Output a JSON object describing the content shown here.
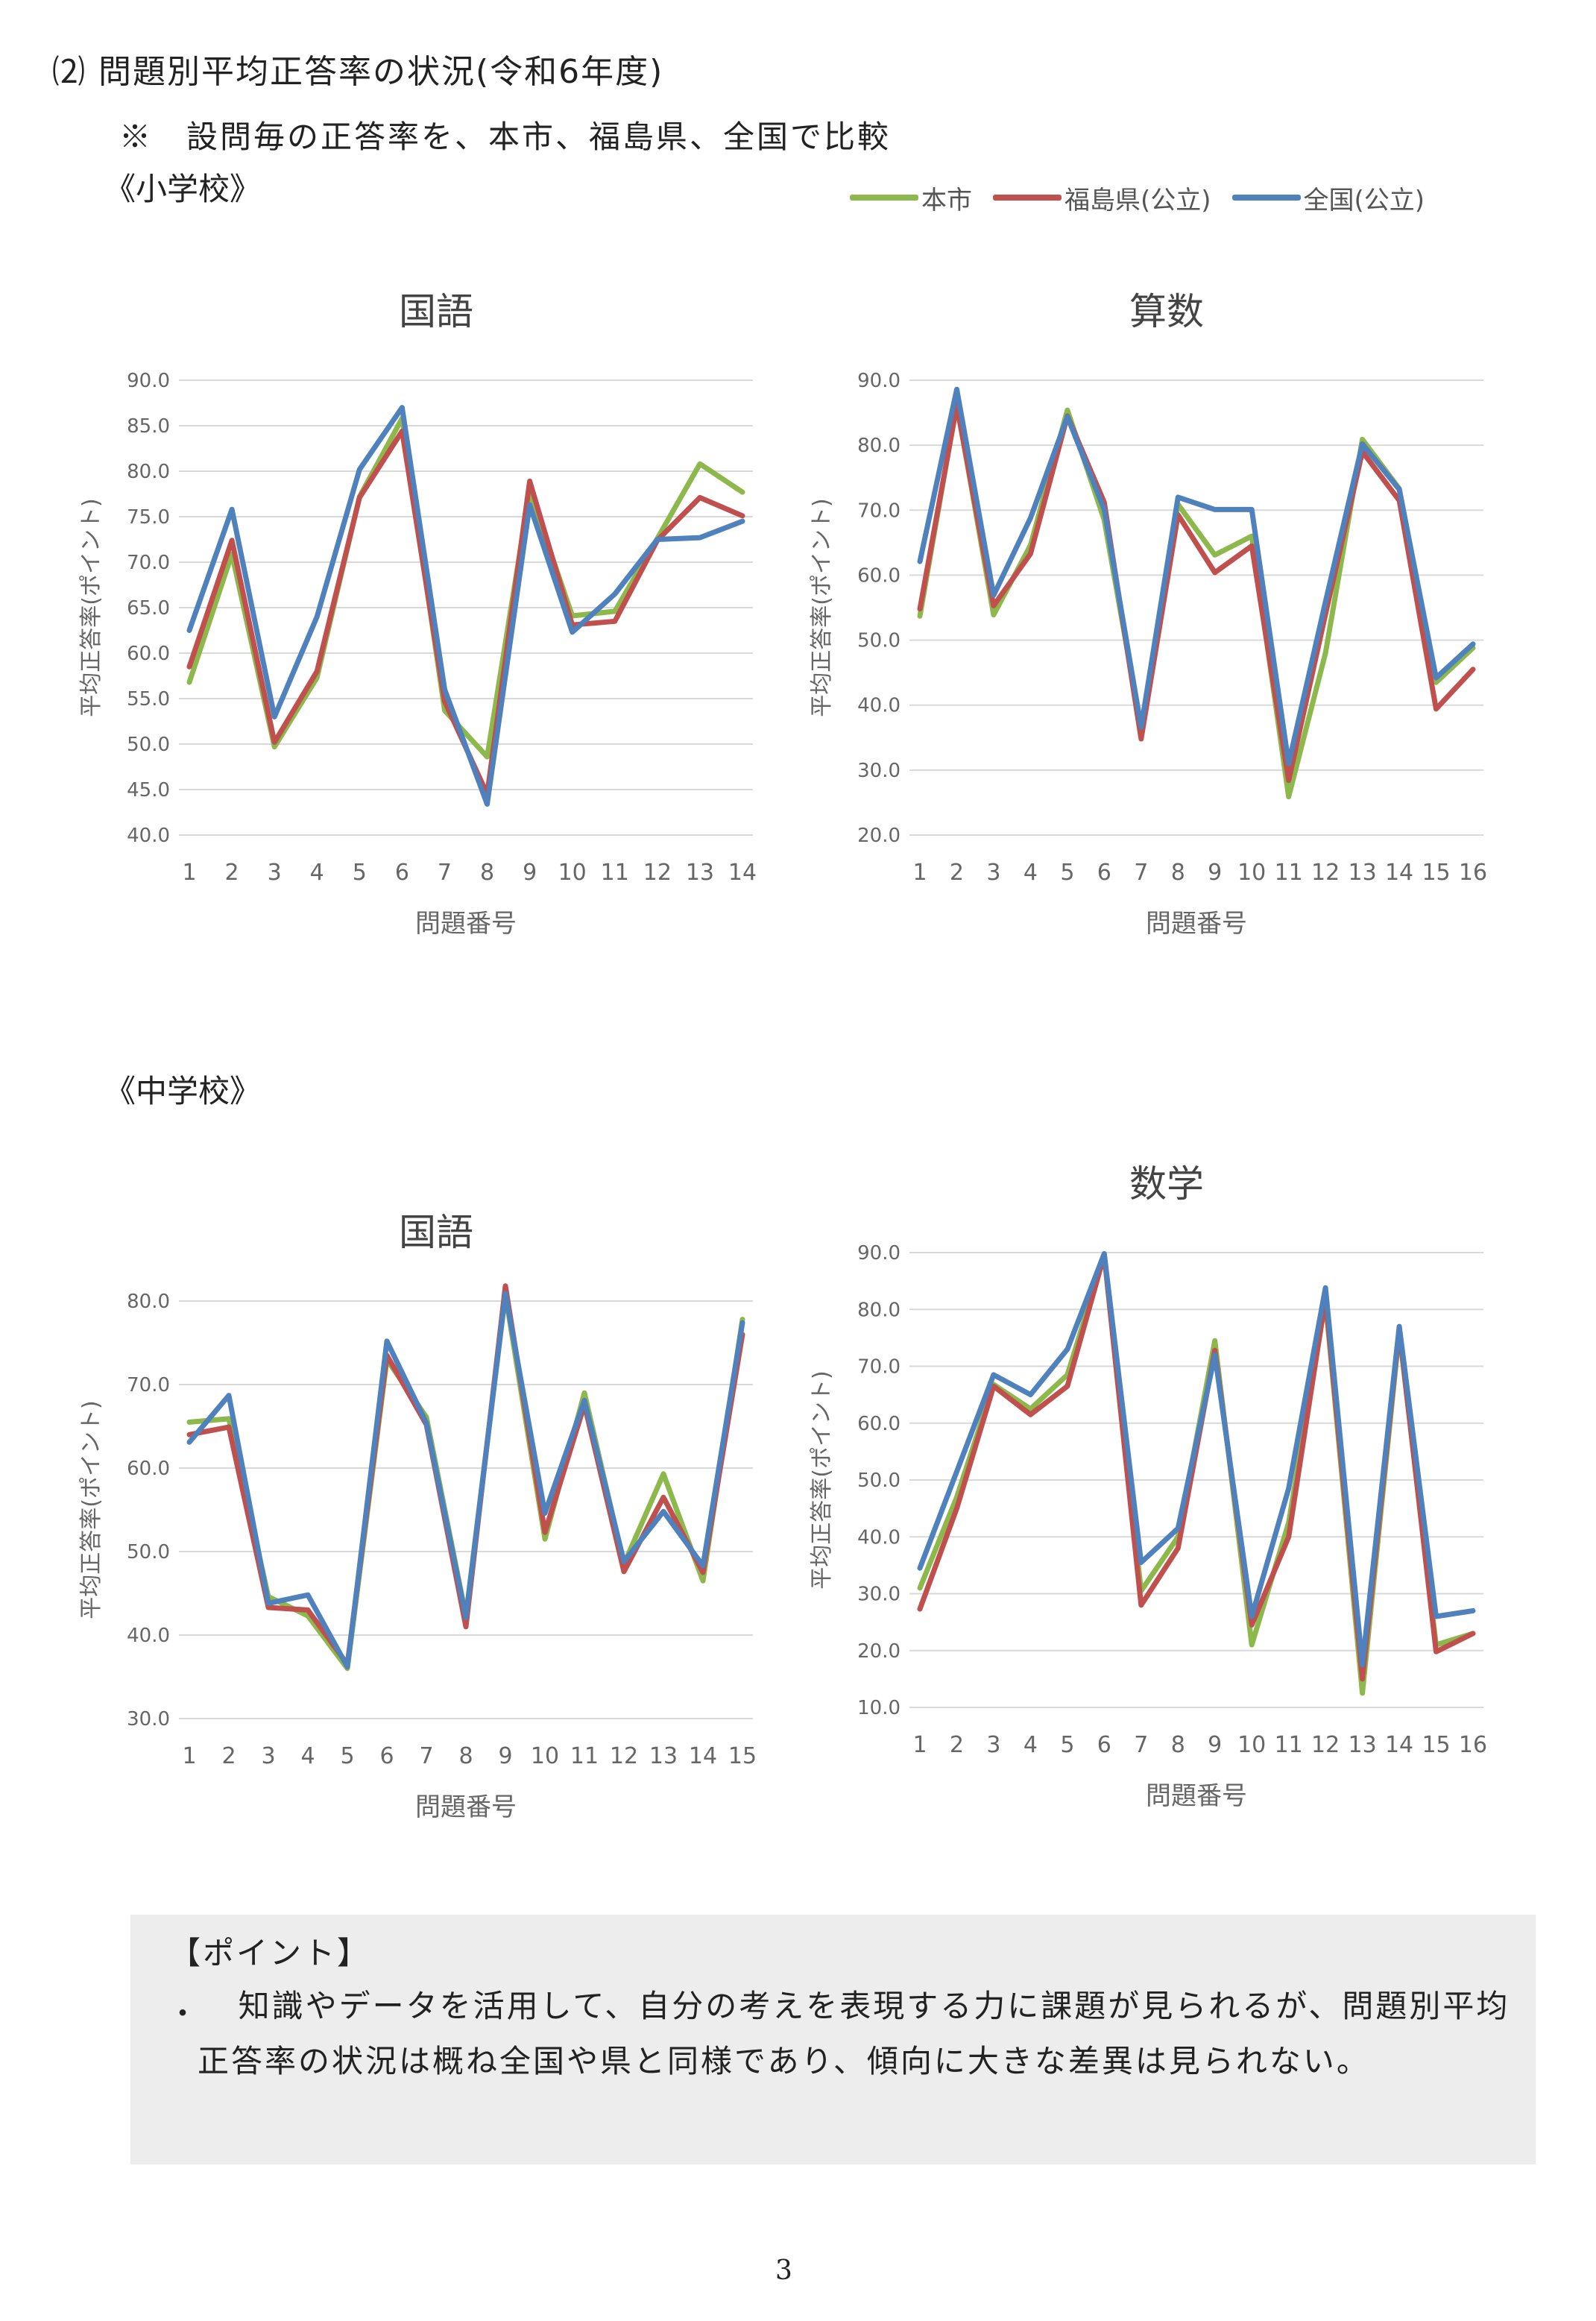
{
  "page": {
    "heading": "⑵ 問題別平均正答率の状況(令和6年度)",
    "note": "※　設問毎の正答率を、本市、福島県、全国で比較",
    "elementary_label": "《小学校》",
    "middle_label": "《中学校》",
    "page_number": "3"
  },
  "legend": [
    {
      "name": "本市",
      "color": "#8db94c"
    },
    {
      "name": "福島県(公立)",
      "color": "#c0504d"
    },
    {
      "name": "全国(公立)",
      "color": "#4f81bd"
    }
  ],
  "point_box": {
    "title": "【ポイント】",
    "bullet": "・",
    "text": "知識やデータを活用して、自分の考えを表現する力に課題が見られるが、問題別平均正答率の状況は概ね全国や県と同様であり、傾向に大きな差異は見られない。"
  },
  "chart_data": [
    {
      "type": "line",
      "title": "国語",
      "xlabel": "問題番号",
      "ylabel": "平均正答率(ポイント)",
      "ylim": [
        40,
        90
      ],
      "yticks": [
        "40.0",
        "45.0",
        "50.0",
        "55.0",
        "60.0",
        "65.0",
        "70.0",
        "75.0",
        "80.0",
        "85.0",
        "90.0"
      ],
      "grid": true,
      "categories": [
        "1",
        "2",
        "3",
        "4",
        "5",
        "6",
        "7",
        "8",
        "9",
        "10",
        "11",
        "12",
        "13",
        "14"
      ],
      "series": [
        {
          "name": "本市",
          "color": "#8db94c",
          "values": [
            56.8,
            70.9,
            49.7,
            57.3,
            77.2,
            85.8,
            53.7,
            48.6,
            77.8,
            64.1,
            64.6,
            72.6,
            80.8,
            77.7
          ]
        },
        {
          "name": "福島県(公立)",
          "color": "#c0504d",
          "values": [
            58.5,
            72.4,
            50.2,
            58.0,
            77.1,
            84.4,
            54.7,
            44.5,
            78.9,
            63.1,
            63.5,
            72.4,
            77.1,
            75.1
          ]
        },
        {
          "name": "全国(公立)",
          "color": "#4f81bd",
          "values": [
            62.5,
            75.8,
            53.0,
            64.0,
            80.2,
            87.0,
            56.0,
            43.4,
            76.3,
            62.3,
            66.5,
            72.5,
            72.7,
            74.5
          ]
        }
      ]
    },
    {
      "type": "line",
      "title": "算数",
      "xlabel": "問題番号",
      "ylabel": "平均正答率(ポイント)",
      "ylim": [
        20,
        90
      ],
      "yticks": [
        "20.0",
        "30.0",
        "40.0",
        "50.0",
        "60.0",
        "70.0",
        "80.0",
        "90.0"
      ],
      "grid": true,
      "categories": [
        "1",
        "2",
        "3",
        "4",
        "5",
        "6",
        "7",
        "8",
        "9",
        "10",
        "11",
        "12",
        "13",
        "14",
        "15",
        "16"
      ],
      "series": [
        {
          "name": "本市",
          "color": "#8db94c",
          "values": [
            53.7,
            86.4,
            53.9,
            64.6,
            85.4,
            68.5,
            36.5,
            70.9,
            63.1,
            66.0,
            25.9,
            48.0,
            80.9,
            73.3,
            43.5,
            48.8
          ]
        },
        {
          "name": "福島県(公立)",
          "color": "#c0504d",
          "values": [
            54.8,
            86.1,
            55.3,
            63.3,
            84.5,
            71.2,
            34.8,
            69.3,
            60.4,
            64.5,
            28.4,
            54.0,
            79.0,
            71.5,
            39.4,
            45.5
          ]
        },
        {
          "name": "全国(公立)",
          "color": "#4f81bd",
          "values": [
            62.1,
            88.6,
            56.9,
            68.8,
            84.4,
            70.1,
            36.6,
            72.0,
            70.1,
            70.1,
            31.0,
            55.9,
            80.2,
            73.2,
            44.2,
            49.4
          ]
        }
      ]
    },
    {
      "type": "line",
      "title": "国語",
      "xlabel": "問題番号",
      "ylabel": "平均正答率(ポイント)",
      "ylim": [
        30,
        80
      ],
      "yticks": [
        "30.0",
        "40.0",
        "50.0",
        "60.0",
        "70.0",
        "80.0"
      ],
      "grid": true,
      "categories": [
        "1",
        "2",
        "3",
        "4",
        "5",
        "6",
        "7",
        "8",
        "9",
        "10",
        "11",
        "12",
        "13",
        "14",
        "15"
      ],
      "series": [
        {
          "name": "本市",
          "color": "#8db94c",
          "values": [
            65.5,
            65.9,
            44.6,
            42.3,
            36.0,
            73.0,
            66.1,
            42.3,
            80.8,
            51.5,
            69.0,
            48.5,
            59.3,
            46.5,
            77.8
          ]
        },
        {
          "name": "福島県(公立)",
          "color": "#c0504d",
          "values": [
            64.0,
            64.9,
            43.3,
            43.0,
            36.5,
            73.5,
            65.2,
            41.0,
            81.8,
            52.3,
            67.6,
            47.6,
            56.5,
            47.5,
            76.0
          ]
        },
        {
          "name": "全国(公立)",
          "color": "#4f81bd",
          "values": [
            63.1,
            68.7,
            43.8,
            44.8,
            36.2,
            75.2,
            65.4,
            42.1,
            80.9,
            54.6,
            68.1,
            48.8,
            54.8,
            48.3,
            77.4
          ]
        }
      ]
    },
    {
      "type": "line",
      "title": "数学",
      "xlabel": "問題番号",
      "ylabel": "平均正答率(ポイント)",
      "ylim": [
        10,
        90
      ],
      "yticks": [
        "10.0",
        "20.0",
        "30.0",
        "40.0",
        "50.0",
        "60.0",
        "70.0",
        "80.0",
        "90.0"
      ],
      "grid": true,
      "categories": [
        "1",
        "2",
        "3",
        "4",
        "5",
        "6",
        "7",
        "8",
        "9",
        "10",
        "11",
        "12",
        "13",
        "14",
        "15",
        "16"
      ],
      "series": [
        {
          "name": "本市",
          "color": "#8db94c",
          "values": [
            31.0,
            47.0,
            66.8,
            62.5,
            68.5,
            89.5,
            30.5,
            40.0,
            74.5,
            21.0,
            42.5,
            81.5,
            12.5,
            76.0,
            21.0,
            23.0
          ]
        },
        {
          "name": "福島県(公立)",
          "color": "#c0504d",
          "values": [
            27.3,
            45.0,
            66.5,
            61.5,
            66.5,
            89.6,
            28.0,
            38.0,
            72.8,
            24.5,
            40.0,
            82.0,
            15.0,
            76.5,
            19.8,
            23.0
          ]
        },
        {
          "name": "全国(公立)",
          "color": "#4f81bd",
          "values": [
            34.5,
            51.5,
            68.5,
            65.0,
            73.0,
            89.8,
            35.5,
            41.5,
            72.0,
            26.0,
            48.5,
            83.8,
            17.5,
            77.0,
            26.0,
            27.0
          ]
        }
      ]
    }
  ]
}
